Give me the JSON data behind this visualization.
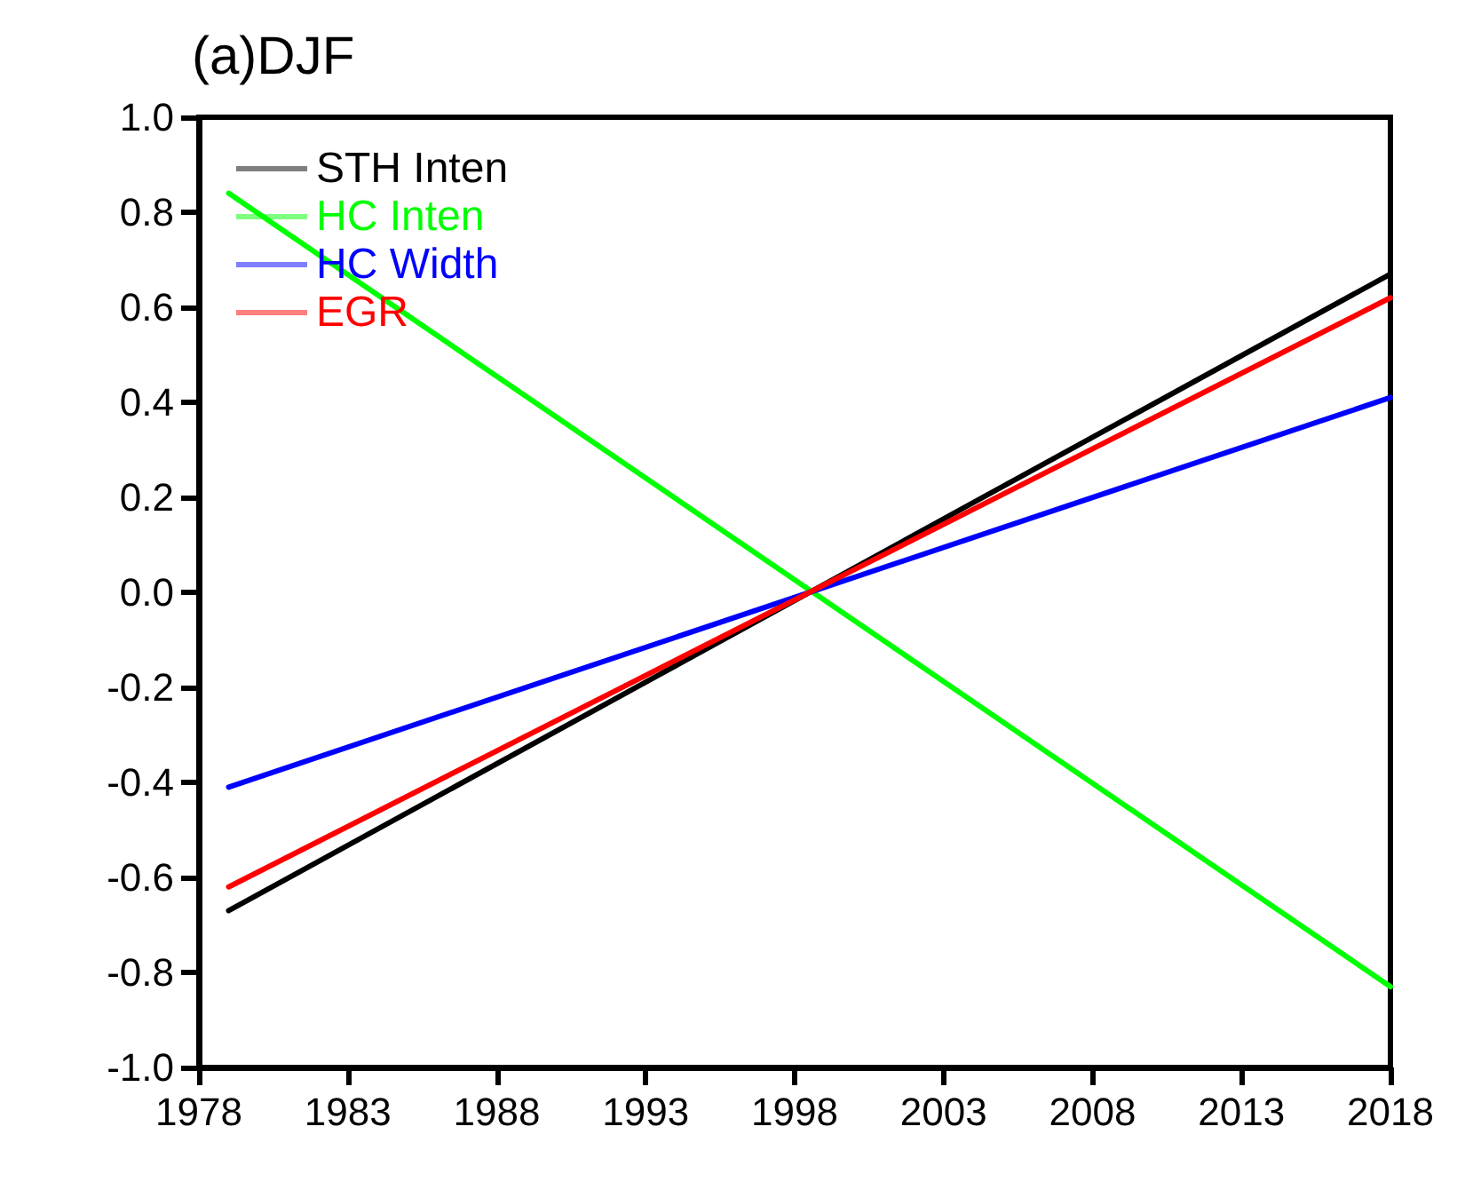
{
  "chart_data": {
    "type": "line",
    "title": "(a)DJF",
    "x": [
      1979,
      2018
    ],
    "series": [
      {
        "name": "STH Inten",
        "color": "#000000",
        "values": [
          -0.67,
          0.67
        ]
      },
      {
        "name": "HC Inten",
        "color": "#00ff00",
        "values": [
          0.84,
          -0.83
        ]
      },
      {
        "name": "HC Width",
        "color": "#0000ff",
        "values": [
          -0.41,
          0.41
        ]
      },
      {
        "name": "EGR",
        "color": "#ff0000",
        "values": [
          -0.62,
          0.62
        ]
      }
    ],
    "xlim": [
      1978,
      2018
    ],
    "xticks": [
      1978,
      1983,
      1988,
      1993,
      1998,
      2003,
      2008,
      2013,
      2018
    ],
    "ylim": [
      -1,
      1
    ],
    "yticks": [
      {
        "value": -1,
        "label": "-1.0"
      },
      {
        "value": -0.8,
        "label": "-0.8"
      },
      {
        "value": -0.6,
        "label": "-0.6"
      },
      {
        "value": -0.4,
        "label": "-0.4"
      },
      {
        "value": -0.2,
        "label": "-0.2"
      },
      {
        "value": 0,
        "label": "0.0"
      },
      {
        "value": 0.2,
        "label": "0.2"
      },
      {
        "value": 0.4,
        "label": "0.4"
      },
      {
        "value": 0.6,
        "label": "0.6"
      },
      {
        "value": 0.8,
        "label": "0.8"
      },
      {
        "value": 1,
        "label": "1.0"
      }
    ],
    "legend": "top left",
    "grid": false,
    "marker": "none",
    "line_style": "solid"
  }
}
